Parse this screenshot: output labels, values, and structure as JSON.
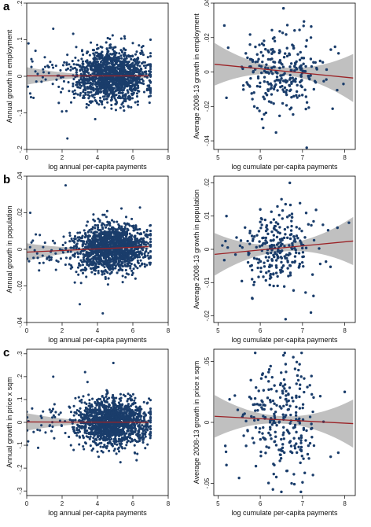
{
  "panel_letters": [
    "a",
    "b",
    "c"
  ],
  "chart_data": [
    {
      "type": "scatter",
      "panel": "a-left",
      "xlabel": "log annual per-capita payments",
      "ylabel": "Annual growth in employment",
      "xlim": [
        0,
        8
      ],
      "ylim": [
        -0.2,
        0.2
      ],
      "xticks": [
        0,
        2,
        4,
        6,
        8
      ],
      "yticks": [
        -0.2,
        -0.1,
        0,
        0.1,
        0.2
      ],
      "ytick_labels": [
        "-.2",
        "-.1",
        "0",
        ".1",
        ".2"
      ],
      "fit_line": {
        "x": [
          0,
          6.9
        ],
        "y": [
          0.001,
          0.001
        ]
      },
      "cloud": {
        "n": 1500,
        "x_center": 4.8,
        "x_spread": 1.0,
        "y_spread": 0.035,
        "x_min": 0,
        "x_max": 7
      },
      "highlights": [
        [
          1.5,
          0.13
        ],
        [
          2.3,
          -0.17
        ],
        [
          0.1,
          0.09
        ],
        [
          6.5,
          0.07
        ],
        [
          2.8,
          0.08
        ]
      ],
      "colors": {
        "point": "#1a3d6b",
        "fit": "#9b2226",
        "band": "#b5b5b5"
      }
    },
    {
      "type": "scatter",
      "panel": "a-right",
      "xlabel": "log cumulate per-capita payments",
      "ylabel": "Average 2008-13 growth in employment",
      "xlim": [
        4.9,
        8.25
      ],
      "ylim": [
        -0.045,
        0.04
      ],
      "xticks": [
        5,
        6,
        7,
        8
      ],
      "yticks": [
        -0.04,
        -0.02,
        0,
        0.02,
        0.04
      ],
      "ytick_labels": [
        "-.04",
        "-.02",
        "0",
        ".02",
        ".04"
      ],
      "fit_line": {
        "x": [
          4.92,
          8.2
        ],
        "y": [
          0.0045,
          -0.0035
        ]
      },
      "cloud": {
        "n": 260,
        "x_center": 6.5,
        "x_spread": 0.45,
        "y_spread": 0.011,
        "x_min": 5.05,
        "x_max": 8.2
      },
      "highlights": [
        [
          6.55,
          0.037
        ],
        [
          7.1,
          -0.044
        ],
        [
          5.15,
          0.027
        ],
        [
          5.2,
          -0.015
        ],
        [
          7.2,
          0.02
        ]
      ],
      "colors": {
        "point": "#1a3d6b",
        "fit": "#9b2226",
        "band": "#b5b5b5"
      }
    },
    {
      "type": "scatter",
      "panel": "b-left",
      "xlabel": "log annual per-capita payments",
      "ylabel": "Annual growth in population",
      "xlim": [
        0,
        8
      ],
      "ylim": [
        -0.04,
        0.04
      ],
      "xticks": [
        0,
        2,
        4,
        6,
        8
      ],
      "yticks": [
        -0.04,
        -0.02,
        0,
        0.02,
        0.04
      ],
      "ytick_labels": [
        "-.04",
        "-.02",
        "0",
        ".02",
        ".04"
      ],
      "fit_line": {
        "x": [
          0,
          6.9
        ],
        "y": [
          -0.0015,
          0.0015
        ]
      },
      "cloud": {
        "n": 1500,
        "x_center": 4.8,
        "x_spread": 1.0,
        "y_spread": 0.0065,
        "x_min": 0,
        "x_max": 7
      },
      "highlights": [
        [
          2.2,
          0.035
        ],
        [
          4.3,
          -0.035
        ],
        [
          0.2,
          0.02
        ],
        [
          6.8,
          0.01
        ],
        [
          3.0,
          -0.03
        ]
      ],
      "colors": {
        "point": "#1a3d6b",
        "fit": "#9b2226",
        "band": "#b5b5b5"
      }
    },
    {
      "type": "scatter",
      "panel": "b-right",
      "xlabel": "log cumulate per-capita payments",
      "ylabel": "Average 2008-13 growth in population",
      "xlim": [
        4.9,
        8.25
      ],
      "ylim": [
        -0.022,
        0.022
      ],
      "xticks": [
        5,
        6,
        7,
        8
      ],
      "yticks": [
        -0.02,
        -0.01,
        0,
        0.01,
        0.02
      ],
      "ytick_labels": [
        "-.02",
        "-.01",
        "0",
        ".01",
        ".02"
      ],
      "fit_line": {
        "x": [
          4.92,
          8.2
        ],
        "y": [
          -0.0015,
          0.0025
        ]
      },
      "cloud": {
        "n": 260,
        "x_center": 6.5,
        "x_spread": 0.45,
        "y_spread": 0.006,
        "x_min": 5.05,
        "x_max": 8.2
      },
      "highlights": [
        [
          6.7,
          0.02
        ],
        [
          6.6,
          -0.021
        ],
        [
          7.2,
          -0.019
        ],
        [
          5.2,
          0.01
        ],
        [
          8.1,
          0.008
        ]
      ],
      "colors": {
        "point": "#1a3d6b",
        "fit": "#9b2226",
        "band": "#b5b5b5"
      }
    },
    {
      "type": "scatter",
      "panel": "c-left",
      "xlabel": "log annual per-capita payments",
      "ylabel": "Annual growth in price x sqm",
      "xlim": [
        0,
        8
      ],
      "ylim": [
        -0.32,
        0.32
      ],
      "xticks": [
        0,
        2,
        4,
        6,
        8
      ],
      "yticks": [
        -0.3,
        -0.2,
        -0.1,
        0,
        0.1,
        0.2,
        0.3
      ],
      "ytick_labels": [
        "-.3",
        "-.2",
        "-.1",
        "0",
        ".1",
        ".2",
        ".3"
      ],
      "fit_line": {
        "x": [
          0,
          6.9
        ],
        "y": [
          0.002,
          0.0
        ]
      },
      "cloud": {
        "n": 1500,
        "x_center": 4.8,
        "x_spread": 1.0,
        "y_spread": 0.05,
        "x_min": 0,
        "x_max": 7
      },
      "highlights": [
        [
          1.5,
          0.2
        ],
        [
          4.9,
          0.26
        ],
        [
          3.3,
          0.22
        ],
        [
          0.1,
          0.005
        ],
        [
          2.5,
          -0.1
        ]
      ],
      "colors": {
        "point": "#1a3d6b",
        "fit": "#9b2226",
        "band": "#b5b5b5"
      }
    },
    {
      "type": "scatter",
      "panel": "c-right",
      "xlabel": "log cumulate per-capita payments",
      "ylabel": "Average 2008-13 growth in price x sqm",
      "xlim": [
        4.9,
        8.25
      ],
      "ylim": [
        -0.06,
        0.06
      ],
      "xticks": [
        5,
        6,
        7,
        8
      ],
      "yticks": [
        -0.05,
        0,
        0.05
      ],
      "ytick_labels": [
        "-.05",
        "0",
        ".05"
      ],
      "fit_line": {
        "x": [
          4.92,
          8.2
        ],
        "y": [
          0.005,
          -0.001
        ]
      },
      "cloud": {
        "n": 260,
        "x_center": 6.5,
        "x_spread": 0.45,
        "y_spread": 0.022,
        "x_min": 5.05,
        "x_max": 8.2
      },
      "highlights": [
        [
          6.55,
          0.055
        ],
        [
          6.5,
          -0.057
        ],
        [
          6.3,
          -0.055
        ],
        [
          8.0,
          0.025
        ],
        [
          5.2,
          -0.035
        ]
      ],
      "colors": {
        "point": "#1a3d6b",
        "fit": "#9b2226",
        "band": "#b5b5b5"
      }
    }
  ]
}
